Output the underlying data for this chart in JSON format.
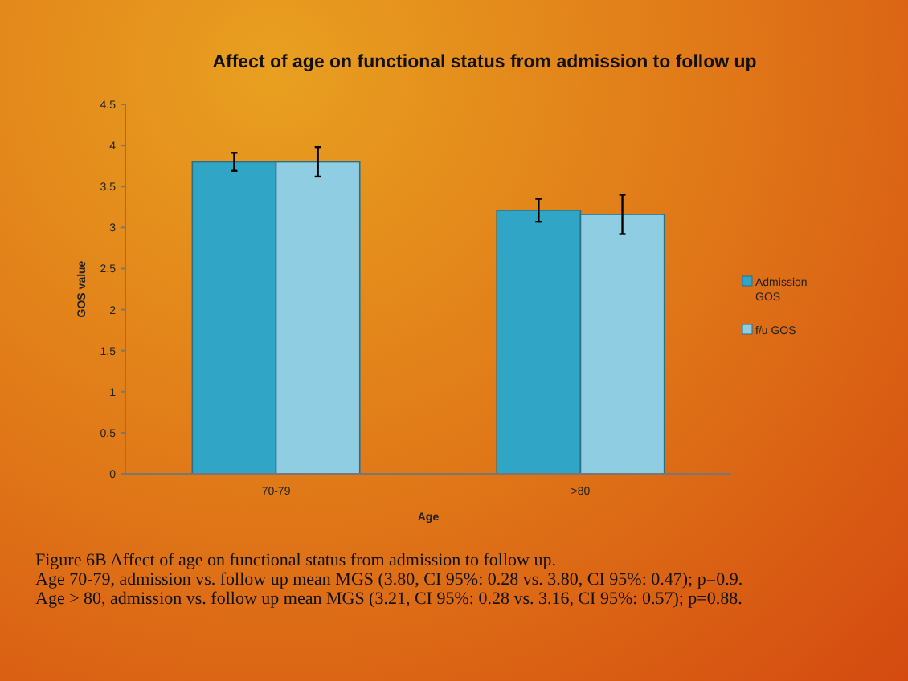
{
  "chart_data": {
    "type": "bar",
    "title": "Affect of age on functional status from admission to follow up",
    "xlabel": "Age",
    "ylabel": "GOS value",
    "categories": [
      "70-79",
      ">80"
    ],
    "series": [
      {
        "name": "Admission GOS",
        "color": "#31a5c6",
        "values": [
          3.8,
          3.21
        ],
        "errors": [
          0.11,
          0.14
        ]
      },
      {
        "name": "f/u GOS",
        "color": "#8fcde3",
        "values": [
          3.8,
          3.16
        ],
        "errors": [
          0.18,
          0.24
        ]
      }
    ],
    "ylim": [
      0,
      4.5
    ],
    "yticks": [
      0,
      0.5,
      1,
      1.5,
      2,
      2.5,
      3,
      3.5,
      4,
      4.5
    ],
    "grid": false,
    "legend": "right",
    "annotations": [
      "Figure 6B Affect of age on functional status from admission to follow up.",
      "Age 70-79, admission vs. follow up mean MGS (3.80, CI 95%: 0.28 vs. 3.80, CI 95%: 0.47); p=0.9.",
      "Age > 80, admission vs. follow up mean MGS (3.21, CI 95%: 0.28 vs. 3.16, CI 95%: 0.57); p=0.88."
    ]
  }
}
